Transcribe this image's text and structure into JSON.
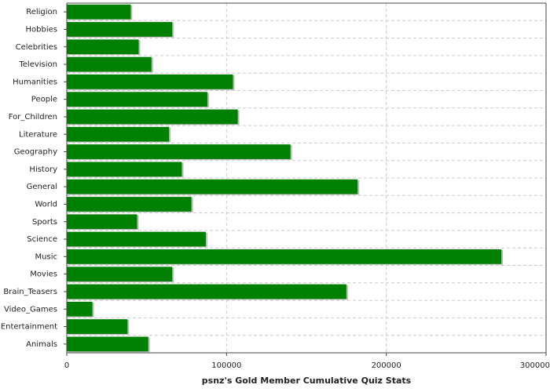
{
  "chart_data": {
    "type": "bar",
    "orientation": "horizontal",
    "title": "psnz's Gold Member Cumulative Quiz Stats",
    "categories": [
      "Religion",
      "Hobbies",
      "Celebrities",
      "Television",
      "Humanities",
      "People",
      "For_Children",
      "Literature",
      "Geography",
      "History",
      "General",
      "World",
      "Sports",
      "Science",
      "Music",
      "Movies",
      "Brain_Teasers",
      "Video_Games",
      "Entertainment",
      "Animals"
    ],
    "values": [
      40000,
      66000,
      45000,
      53000,
      104000,
      88000,
      107000,
      64000,
      140000,
      72000,
      182000,
      78000,
      44000,
      87000,
      272000,
      66000,
      175000,
      16000,
      38000,
      51000
    ],
    "color": "#008000",
    "xlim": [
      0,
      300000
    ],
    "xticks": [
      0,
      100000,
      200000,
      300000
    ],
    "grid": true
  }
}
